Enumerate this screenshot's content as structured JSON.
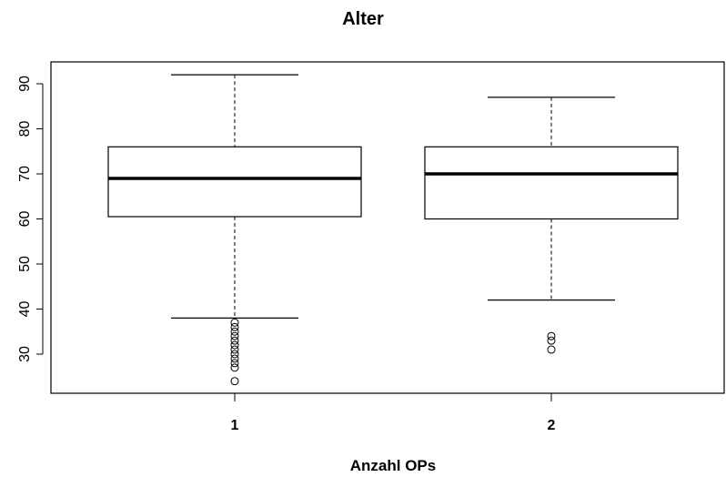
{
  "chart_data": {
    "type": "boxplot",
    "title": "Alter",
    "xlabel": "Anzahl OPs",
    "ylabel": "",
    "ylim": [
      22,
      95
    ],
    "yticks": [
      30,
      40,
      50,
      60,
      70,
      80,
      90
    ],
    "categories": [
      "1",
      "2"
    ],
    "boxes": [
      {
        "category": "1",
        "whisker_low": 38,
        "q1": 60.5,
        "median": 69,
        "q3": 76,
        "whisker_high": 92,
        "outliers": [
          24,
          27,
          28,
          29,
          30,
          31,
          32,
          33,
          34,
          35,
          36,
          37
        ]
      },
      {
        "category": "2",
        "whisker_low": 42,
        "q1": 60,
        "median": 70,
        "q3": 76,
        "whisker_high": 87,
        "outliers": [
          31,
          33,
          34
        ]
      }
    ],
    "grid": false
  }
}
